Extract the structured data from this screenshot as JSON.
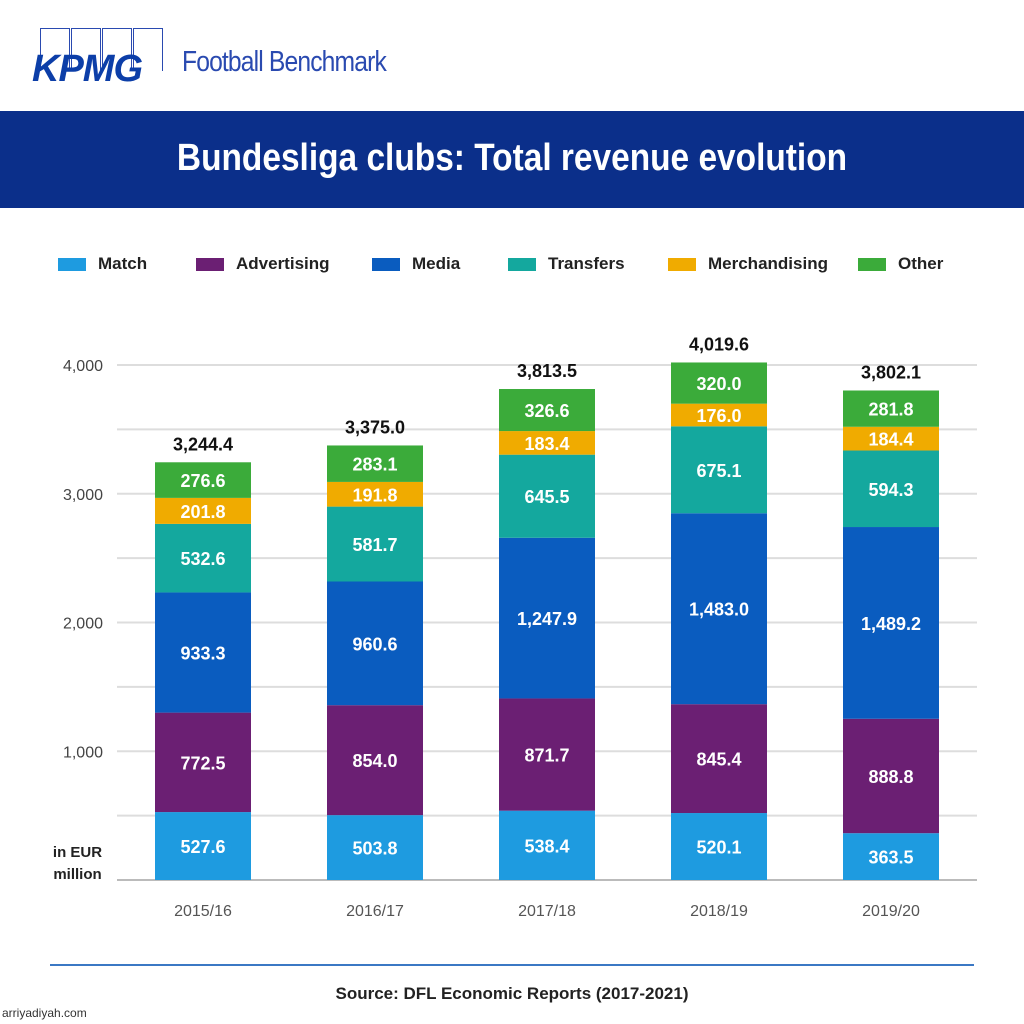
{
  "header": {
    "logo": "KPMG",
    "brand": "Football Benchmark",
    "title": "Bundesliga clubs: Total revenue evolution"
  },
  "footer": {
    "source": "Source: DFL Economic Reports (2017-2021)",
    "watermark": "arriyadiyah.com"
  },
  "chart_data": {
    "type": "bar",
    "stacked": true,
    "title": "Bundesliga clubs: Total revenue evolution",
    "ylabel": "in EUR million",
    "ylim": [
      0,
      4000
    ],
    "yticks": [
      "1,000",
      "2,000",
      "3,000",
      "4,000"
    ],
    "grid": true,
    "legend_position": "top",
    "categories": [
      "2015/16",
      "2016/17",
      "2017/18",
      "2018/19",
      "2019/20"
    ],
    "totals": [
      "3,244.4",
      "3,375.0",
      "3,813.5",
      "4,019.6",
      "3,802.1"
    ],
    "series": [
      {
        "name": "Match",
        "color": "#1e9be0",
        "values": [
          527.6,
          503.8,
          538.4,
          520.1,
          363.5
        ]
      },
      {
        "name": "Advertising",
        "color": "#6b1f73",
        "values": [
          772.5,
          854.0,
          871.7,
          845.4,
          888.8
        ]
      },
      {
        "name": "Media",
        "color": "#0a5cbf",
        "values": [
          933.3,
          960.6,
          1247.9,
          1483.0,
          1489.2
        ]
      },
      {
        "name": "Transfers",
        "color": "#14a89e",
        "values": [
          532.6,
          581.7,
          645.5,
          675.1,
          594.3
        ]
      },
      {
        "name": "Merchandising",
        "color": "#f0ab00",
        "values": [
          201.8,
          191.8,
          183.4,
          176.0,
          184.4
        ]
      },
      {
        "name": "Other",
        "color": "#3bab3a",
        "values": [
          276.6,
          283.1,
          326.6,
          320.0,
          281.8
        ]
      }
    ]
  }
}
